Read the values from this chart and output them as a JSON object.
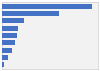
{
  "values": [
    84695,
    53607,
    20202,
    15120,
    13735,
    11800,
    9000,
    5500,
    2200
  ],
  "bar_color": "#4472c4",
  "background_color": "#ffffff",
  "plot_background": "#f2f2f2",
  "grid_color": "#ffffff",
  "ylim": [
    0,
    90000
  ],
  "bar_height": 0.65
}
